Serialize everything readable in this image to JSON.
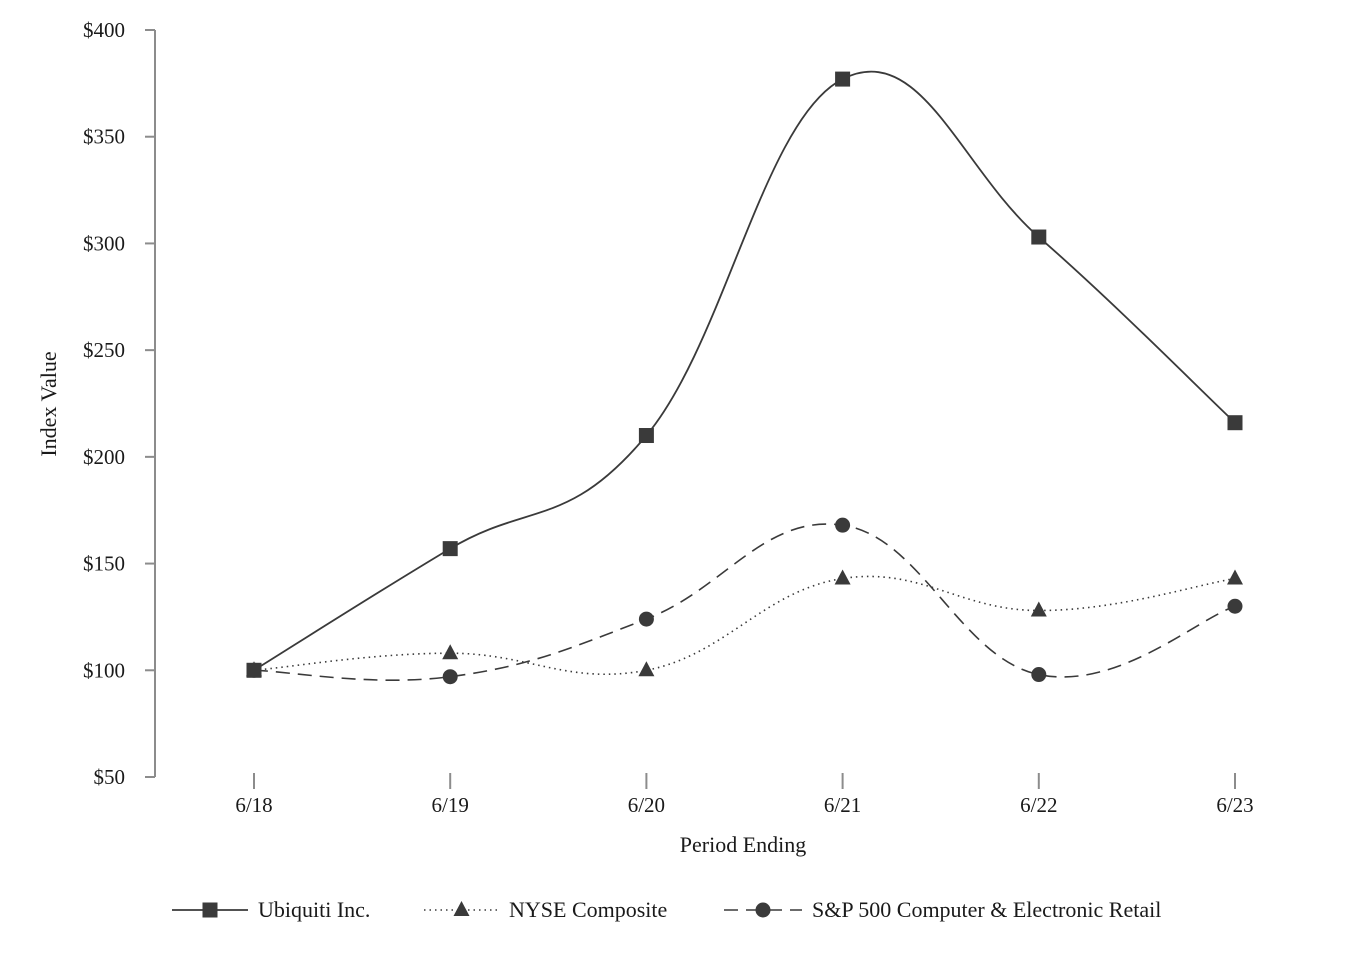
{
  "chart_data": {
    "type": "line",
    "title": "",
    "xlabel": "Period Ending",
    "ylabel": "Index Value",
    "categories": [
      "6/18",
      "6/19",
      "6/20",
      "6/21",
      "6/22",
      "6/23"
    ],
    "ylim": [
      50,
      400
    ],
    "yticks": [
      50,
      100,
      150,
      200,
      250,
      300,
      350,
      400
    ],
    "ytick_labels": [
      "$50",
      "$100",
      "$150",
      "$200",
      "$250",
      "$300",
      "$350",
      "$400"
    ],
    "grid": false,
    "legend_position": "bottom",
    "series": [
      {
        "name": "Ubiquiti Inc.",
        "marker": "square",
        "line_style": "solid",
        "values": [
          100,
          157,
          210,
          377,
          303,
          216
        ]
      },
      {
        "name": "NYSE Composite",
        "marker": "triangle",
        "line_style": "dotted",
        "values": [
          100,
          108,
          100,
          143,
          128,
          143
        ]
      },
      {
        "name": "S&P 500 Computer & Electronic Retail",
        "marker": "circle",
        "line_style": "dashed",
        "values": [
          100,
          97,
          124,
          168,
          98,
          130
        ]
      }
    ],
    "colors": {
      "line": "#3a3a3a",
      "axis": "#8c8c8c",
      "text": "#1a1a1a"
    }
  }
}
